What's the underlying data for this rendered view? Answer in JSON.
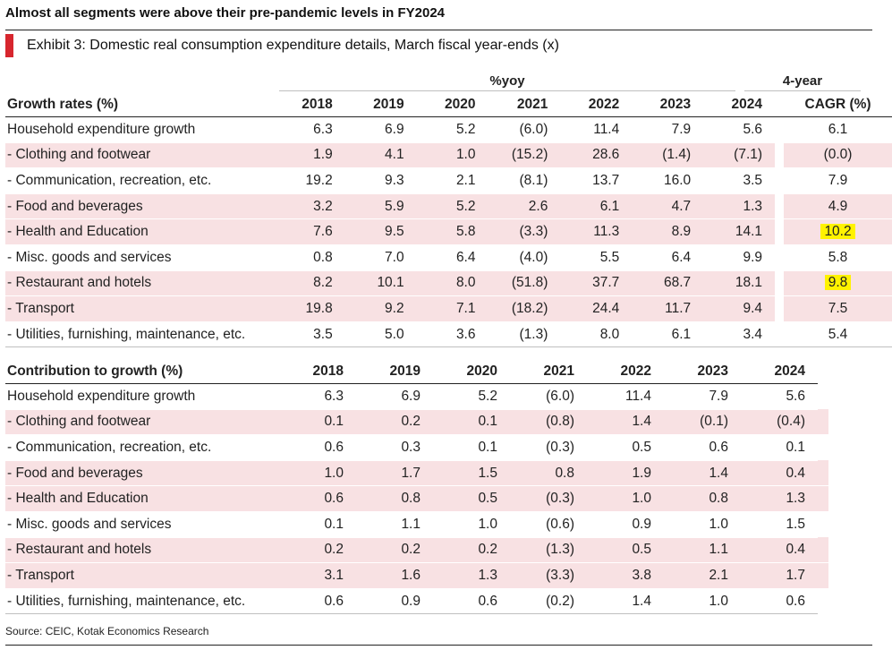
{
  "headline": "Almost all segments were above their pre-pandemic levels in FY2024",
  "exhibit_title": "Exhibit 3: Domestic real consumption expenditure details, March fiscal year-ends (x)",
  "pct_header": "%yoy",
  "cagr_header_line1": "4-year",
  "table1": {
    "label_header": "Growth rates (%)",
    "years": [
      "2018",
      "2019",
      "2020",
      "2021",
      "2022",
      "2023",
      "2024"
    ],
    "cagr_header": "CAGR (%)",
    "rows": [
      {
        "label": "Household expenditure growth",
        "values": [
          "6.3",
          "6.9",
          "5.2",
          "(6.0)",
          "11.4",
          "7.9",
          "5.6"
        ],
        "cagr": "6.1",
        "highlight_row": false,
        "highlight_cagr": false
      },
      {
        "label": "- Clothing and footwear",
        "values": [
          "1.9",
          "4.1",
          "1.0",
          "(15.2)",
          "28.6",
          "(1.4)",
          "(7.1)"
        ],
        "cagr": "(0.0)",
        "highlight_row": true,
        "highlight_cagr": false
      },
      {
        "label": "- Communication, recreation, etc.",
        "values": [
          "19.2",
          "9.3",
          "2.1",
          "(8.1)",
          "13.7",
          "16.0",
          "3.5"
        ],
        "cagr": "7.9",
        "highlight_row": false,
        "highlight_cagr": false
      },
      {
        "label": "- Food and beverages",
        "values": [
          "3.2",
          "5.9",
          "5.2",
          "2.6",
          "6.1",
          "4.7",
          "1.3"
        ],
        "cagr": "4.9",
        "highlight_row": true,
        "highlight_cagr": false
      },
      {
        "label": "- Health and Education",
        "values": [
          "7.6",
          "9.5",
          "5.8",
          "(3.3)",
          "11.3",
          "8.9",
          "14.1"
        ],
        "cagr": "10.2",
        "highlight_row": true,
        "highlight_cagr": true
      },
      {
        "label": "- Misc. goods and services",
        "values": [
          "0.8",
          "7.0",
          "6.4",
          "(4.0)",
          "5.5",
          "6.4",
          "9.9"
        ],
        "cagr": "5.8",
        "highlight_row": false,
        "highlight_cagr": false
      },
      {
        "label": "- Restaurant and hotels",
        "values": [
          "8.2",
          "10.1",
          "8.0",
          "(51.8)",
          "37.7",
          "68.7",
          "18.1"
        ],
        "cagr": "9.8",
        "highlight_row": true,
        "highlight_cagr": true
      },
      {
        "label": "- Transport",
        "values": [
          "19.8",
          "9.2",
          "7.1",
          "(18.2)",
          "24.4",
          "11.7",
          "9.4"
        ],
        "cagr": "7.5",
        "highlight_row": true,
        "highlight_cagr": false
      },
      {
        "label": "- Utilities, furnishing, maintenance, etc.",
        "values": [
          "3.5",
          "5.0",
          "3.6",
          "(1.3)",
          "8.0",
          "6.1",
          "3.4"
        ],
        "cagr": "5.4",
        "highlight_row": false,
        "highlight_cagr": false
      }
    ]
  },
  "table2": {
    "label_header": "Contribution to growth (%)",
    "years": [
      "2018",
      "2019",
      "2020",
      "2021",
      "2022",
      "2023",
      "2024"
    ],
    "rows": [
      {
        "label": "Household expenditure growth",
        "values": [
          "6.3",
          "6.9",
          "5.2",
          "(6.0)",
          "11.4",
          "7.9",
          "5.6"
        ],
        "highlight_row": false
      },
      {
        "label": "- Clothing and footwear",
        "values": [
          "0.1",
          "0.2",
          "0.1",
          "(0.8)",
          "1.4",
          "(0.1)",
          "(0.4)"
        ],
        "highlight_row": true
      },
      {
        "label": "- Communication, recreation, etc.",
        "values": [
          "0.6",
          "0.3",
          "0.1",
          "(0.3)",
          "0.5",
          "0.6",
          "0.1"
        ],
        "highlight_row": false
      },
      {
        "label": "- Food and beverages",
        "values": [
          "1.0",
          "1.7",
          "1.5",
          "0.8",
          "1.9",
          "1.4",
          "0.4"
        ],
        "highlight_row": true
      },
      {
        "label": "- Health and Education",
        "values": [
          "0.6",
          "0.8",
          "0.5",
          "(0.3)",
          "1.0",
          "0.8",
          "1.3"
        ],
        "highlight_row": true
      },
      {
        "label": "- Misc. goods and services",
        "values": [
          "0.1",
          "1.1",
          "1.0",
          "(0.6)",
          "0.9",
          "1.0",
          "1.5"
        ],
        "highlight_row": false
      },
      {
        "label": "- Restaurant and hotels",
        "values": [
          "0.2",
          "0.2",
          "0.2",
          "(1.3)",
          "0.5",
          "1.1",
          "0.4"
        ],
        "highlight_row": true
      },
      {
        "label": "- Transport",
        "values": [
          "3.1",
          "1.6",
          "1.3",
          "(3.3)",
          "3.8",
          "2.1",
          "1.7"
        ],
        "highlight_row": true
      },
      {
        "label": "- Utilities, furnishing, maintenance, etc.",
        "values": [
          "0.6",
          "0.9",
          "0.6",
          "(0.2)",
          "1.4",
          "1.0",
          "0.6"
        ],
        "highlight_row": false
      }
    ]
  },
  "source": "Source: CEIC, Kotak Economics Research",
  "colors": {
    "accent_red": "#d7262e",
    "row_highlight": "#f8e1e3",
    "cell_highlight": "#fff200"
  }
}
